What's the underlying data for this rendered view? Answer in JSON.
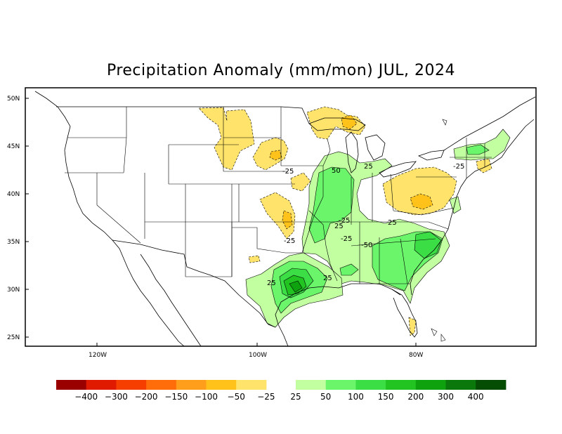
{
  "title": "Precipitation Anomaly (mm/mon) JUL, 2024",
  "axes": {
    "lat_labels": [
      "50N",
      "45N",
      "40N",
      "35N",
      "30N",
      "25N"
    ],
    "lon_labels": [
      "120W",
      "100W",
      "80W"
    ]
  },
  "contour_labels": [
    "-25",
    "50",
    "25",
    "-25",
    "-25",
    "-25",
    "-25",
    "25",
    "-50",
    "25",
    "25",
    "25"
  ],
  "legend": {
    "labels": [
      "-400",
      "-300",
      "-200",
      "-150",
      "-100",
      "-50",
      "-25",
      "25",
      "50",
      "100",
      "150",
      "200",
      "300",
      "400"
    ],
    "dry_colors": [
      "#9b0000",
      "#e01a00",
      "#f63e00",
      "#ff6c0a",
      "#ff9e1a",
      "#ffc21a",
      "#ffe36b"
    ],
    "wet_colors": [
      "#c1ffa0",
      "#6af56a",
      "#3cde46",
      "#22c422",
      "#0ea30e",
      "#0a780a",
      "#054d05"
    ]
  },
  "colors": {
    "dry_light": "#ffe36b",
    "dry_mid": "#ffc21a",
    "wet_light": "#c1ffa0",
    "wet_mid": "#6af56a",
    "wet_150": "#3cde46",
    "wet_200": "#22c422",
    "wet_300": "#0ea30e"
  }
}
